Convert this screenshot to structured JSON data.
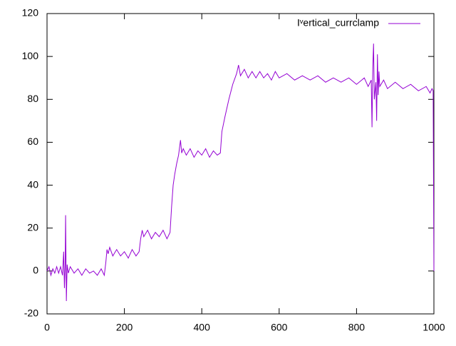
{
  "chart_data": {
    "type": "line",
    "series": [
      {
        "name": "Iᵛertical_currclamp",
        "color": "#9400d3",
        "x": [
          0,
          5,
          10,
          15,
          20,
          25,
          30,
          35,
          40,
          43,
          45,
          47,
          48,
          50,
          52,
          55,
          60,
          70,
          80,
          90,
          100,
          110,
          120,
          130,
          140,
          148,
          152,
          155,
          158,
          162,
          170,
          180,
          190,
          200,
          210,
          220,
          230,
          238,
          242,
          246,
          250,
          260,
          270,
          280,
          290,
          300,
          310,
          318,
          322,
          326,
          330,
          335,
          340,
          345,
          348,
          352,
          360,
          370,
          380,
          390,
          400,
          410,
          420,
          430,
          440,
          448,
          452,
          460,
          470,
          480,
          490,
          495,
          500,
          510,
          520,
          530,
          540,
          550,
          560,
          570,
          580,
          590,
          600,
          620,
          640,
          660,
          680,
          700,
          720,
          740,
          760,
          780,
          800,
          820,
          830,
          838,
          840,
          842,
          844,
          846,
          850,
          852,
          854,
          856,
          858,
          860,
          870,
          880,
          900,
          920,
          940,
          960,
          980,
          990,
          995,
          998,
          1000
        ],
        "values": [
          0,
          2,
          -2,
          1,
          -1,
          2,
          -1,
          2,
          -2,
          9,
          -8,
          4,
          26,
          -14,
          3,
          -1,
          2,
          -1,
          1,
          -2,
          1,
          -1,
          0,
          -2,
          1,
          -2,
          4,
          10,
          8,
          11,
          7,
          10,
          7,
          9,
          6,
          10,
          7,
          9,
          15,
          19,
          16,
          19,
          15,
          18,
          16,
          19,
          15,
          18,
          30,
          40,
          45,
          50,
          54,
          61,
          55,
          57,
          54,
          57,
          53,
          56,
          54,
          57,
          53,
          56,
          54,
          55,
          65,
          72,
          80,
          87,
          92,
          96,
          91,
          94,
          90,
          93,
          90,
          93,
          90,
          92,
          89,
          93,
          90,
          92,
          89,
          91,
          89,
          91,
          88,
          90,
          88,
          90,
          87,
          90,
          86,
          89,
          67,
          95,
          106,
          80,
          88,
          70,
          101,
          82,
          93,
          86,
          89,
          85,
          88,
          85,
          87,
          84,
          86,
          83,
          85,
          84,
          0
        ]
      }
    ],
    "xlim": [
      0,
      1000
    ],
    "xticks": [
      0,
      200,
      400,
      600,
      800,
      1000
    ],
    "ylim": [
      -20,
      120
    ],
    "yticks": [
      -20,
      0,
      20,
      40,
      60,
      80,
      100,
      120
    ],
    "grid": false,
    "legend": "top-right"
  }
}
